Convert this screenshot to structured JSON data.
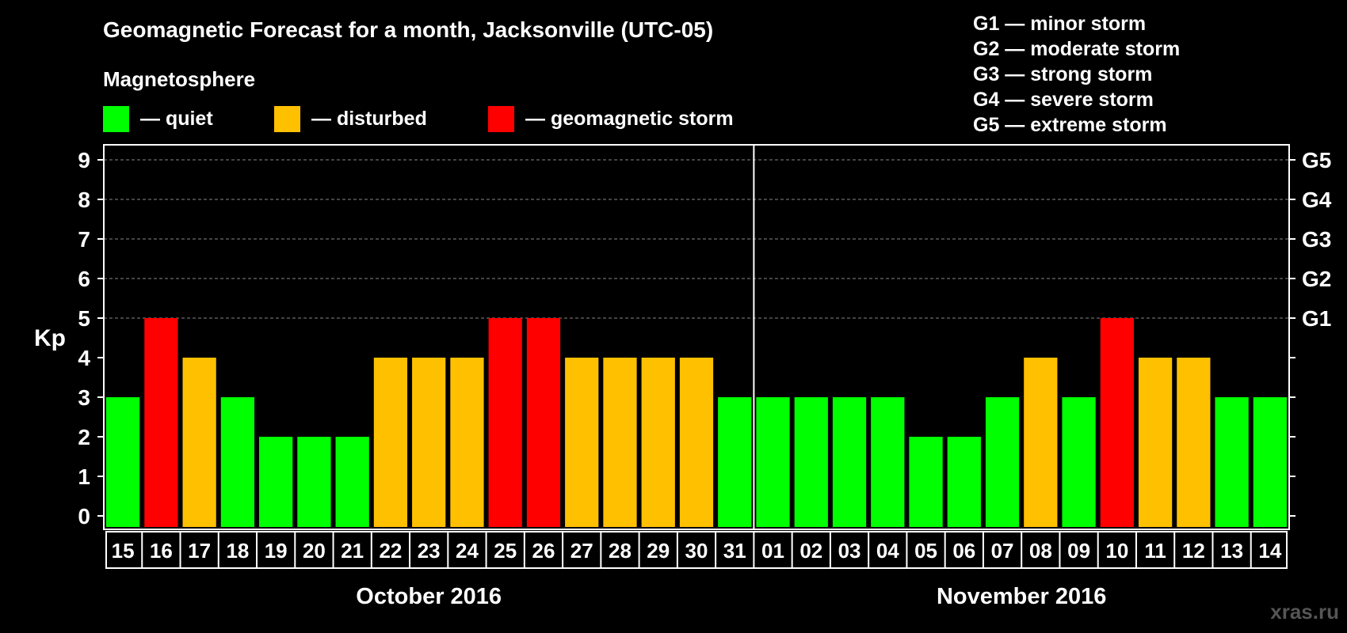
{
  "chart_data": {
    "type": "bar",
    "title": "Geomagnetic Forecast for a month, Jacksonville (UTC-05)",
    "ylabel": "Kp",
    "ylim": [
      0,
      9
    ],
    "yticks": [
      "0",
      "1",
      "2",
      "3",
      "4",
      "5",
      "6",
      "7",
      "8",
      "9"
    ],
    "right_labels": [
      {
        "kp": 5,
        "label": "G1"
      },
      {
        "kp": 6,
        "label": "G2"
      },
      {
        "kp": 7,
        "label": "G3"
      },
      {
        "kp": 8,
        "label": "G4"
      },
      {
        "kp": 9,
        "label": "G5"
      }
    ],
    "grid_levels": [
      5,
      6,
      7,
      8,
      9
    ],
    "categories": [
      "15",
      "16",
      "17",
      "18",
      "19",
      "20",
      "21",
      "22",
      "23",
      "24",
      "25",
      "26",
      "27",
      "28",
      "29",
      "30",
      "31",
      "01",
      "02",
      "03",
      "04",
      "05",
      "06",
      "07",
      "08",
      "09",
      "10",
      "11",
      "12",
      "13",
      "14"
    ],
    "values": [
      3,
      5,
      4,
      3,
      2,
      2,
      2,
      4,
      4,
      4,
      5,
      5,
      4,
      4,
      4,
      4,
      3,
      3,
      3,
      3,
      3,
      2,
      2,
      3,
      4,
      3,
      5,
      4,
      4,
      3,
      3
    ],
    "status": [
      "quiet",
      "storm",
      "disturbed",
      "quiet",
      "quiet",
      "quiet",
      "quiet",
      "disturbed",
      "disturbed",
      "disturbed",
      "storm",
      "storm",
      "disturbed",
      "disturbed",
      "disturbed",
      "disturbed",
      "quiet",
      "quiet",
      "quiet",
      "quiet",
      "quiet",
      "quiet",
      "quiet",
      "quiet",
      "disturbed",
      "quiet",
      "storm",
      "disturbed",
      "disturbed",
      "quiet",
      "quiet"
    ],
    "months": [
      {
        "label": "October 2016",
        "start": 0,
        "end": 16
      },
      {
        "label": "November 2016",
        "start": 17,
        "end": 30
      }
    ],
    "month_divider_after_index": 16,
    "legend": {
      "heading": "Magnetosphere",
      "items": [
        {
          "key": "quiet",
          "label": "— quiet",
          "color": "#00ff00"
        },
        {
          "key": "disturbed",
          "label": "— disturbed",
          "color": "#ffc000"
        },
        {
          "key": "storm",
          "label": "— geomagnetic storm",
          "color": "#ff0000"
        }
      ]
    },
    "g_scale": [
      "G1 — minor storm",
      "G2 — moderate storm",
      "G3 — strong storm",
      "G4 — severe storm",
      "G5 — extreme storm"
    ],
    "watermark": "xras.ru"
  }
}
